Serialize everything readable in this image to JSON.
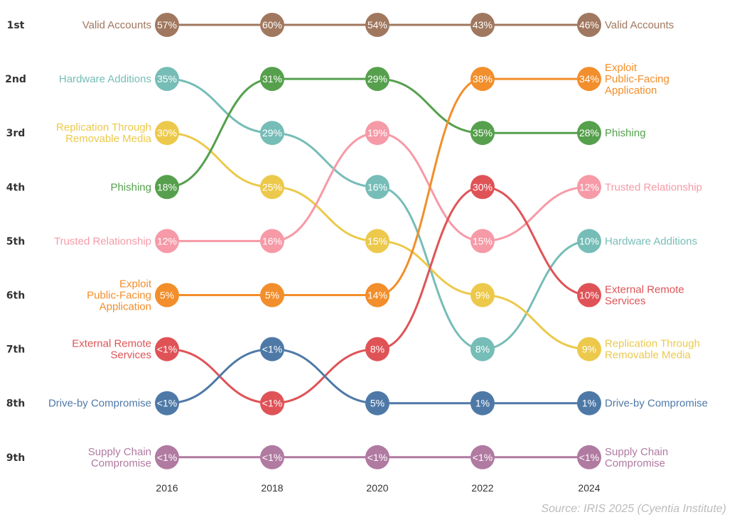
{
  "chart_data": {
    "type": "bump",
    "years": [
      "2016",
      "2018",
      "2020",
      "2022",
      "2024"
    ],
    "ranks": [
      "1st",
      "2nd",
      "3rd",
      "4th",
      "5th",
      "6th",
      "7th",
      "8th",
      "9th"
    ],
    "source": "Source: IRIS 2025 (Cyentia Institute)",
    "series": [
      {
        "name": "Valid Accounts",
        "left_lines": [
          "Valid Accounts"
        ],
        "right_lines": [
          "Valid Accounts"
        ],
        "color": "#a0785f",
        "ranks": [
          1,
          1,
          1,
          1,
          1
        ],
        "values": [
          "57%",
          "60%",
          "54%",
          "43%",
          "46%"
        ]
      },
      {
        "name": "Hardware Additions",
        "left_lines": [
          "Hardware Additions"
        ],
        "right_lines": [
          "Hardware Additions"
        ],
        "color": "#76bdb7",
        "ranks": [
          2,
          3,
          4,
          7,
          5
        ],
        "values": [
          "35%",
          "29%",
          "16%",
          "8%",
          "10%"
        ]
      },
      {
        "name": "Replication Through Removable Media",
        "left_lines": [
          "Replication Through",
          "Removable Media"
        ],
        "right_lines": [
          "Replication Through",
          "Removable Media"
        ],
        "color": "#ecc94b",
        "ranks": [
          3,
          4,
          5,
          6,
          7
        ],
        "values": [
          "30%",
          "25%",
          "15%",
          "9%",
          "9%"
        ]
      },
      {
        "name": "Phishing",
        "left_lines": [
          "Phishing"
        ],
        "right_lines": [
          "Phishing"
        ],
        "color": "#56a04d",
        "ranks": [
          4,
          2,
          2,
          3,
          3
        ],
        "values": [
          "18%",
          "31%",
          "29%",
          "35%",
          "28%"
        ]
      },
      {
        "name": "Trusted Relationship",
        "left_lines": [
          "Trusted Relationship"
        ],
        "right_lines": [
          "Trusted Relationship"
        ],
        "color": "#f69aa7",
        "ranks": [
          5,
          5,
          3,
          5,
          4
        ],
        "values": [
          "12%",
          "16%",
          "19%",
          "15%",
          "12%"
        ]
      },
      {
        "name": "Exploit Public-Facing Application",
        "left_lines": [
          "Exploit",
          "Public-Facing",
          "Application"
        ],
        "right_lines": [
          "Exploit",
          "Public-Facing",
          "Application"
        ],
        "color": "#f28e2b",
        "ranks": [
          6,
          6,
          6,
          2,
          2
        ],
        "values": [
          "5%",
          "5%",
          "14%",
          "38%",
          "34%"
        ]
      },
      {
        "name": "External Remote Services",
        "left_lines": [
          "External Remote",
          "Services"
        ],
        "right_lines": [
          "External Remote",
          "Services"
        ],
        "color": "#df5357",
        "ranks": [
          7,
          8,
          7,
          4,
          6
        ],
        "values": [
          "<1%",
          "<1%",
          "8%",
          "30%",
          "10%"
        ]
      },
      {
        "name": "Drive-by Compromise",
        "left_lines": [
          "Drive-by Compromise"
        ],
        "right_lines": [
          "Drive-by Compromise"
        ],
        "color": "#4e79a7",
        "ranks": [
          8,
          7,
          8,
          8,
          8
        ],
        "values": [
          "<1%",
          "<1%",
          "5%",
          "1%",
          "1%"
        ]
      },
      {
        "name": "Supply Chain Compromise",
        "left_lines": [
          "Supply Chain",
          "Compromise"
        ],
        "right_lines": [
          "Supply Chain",
          "Compromise"
        ],
        "color": "#b07aa1",
        "ranks": [
          9,
          9,
          9,
          9,
          9
        ],
        "values": [
          "<1%",
          "<1%",
          "<1%",
          "<1%",
          "<1%"
        ]
      }
    ]
  }
}
